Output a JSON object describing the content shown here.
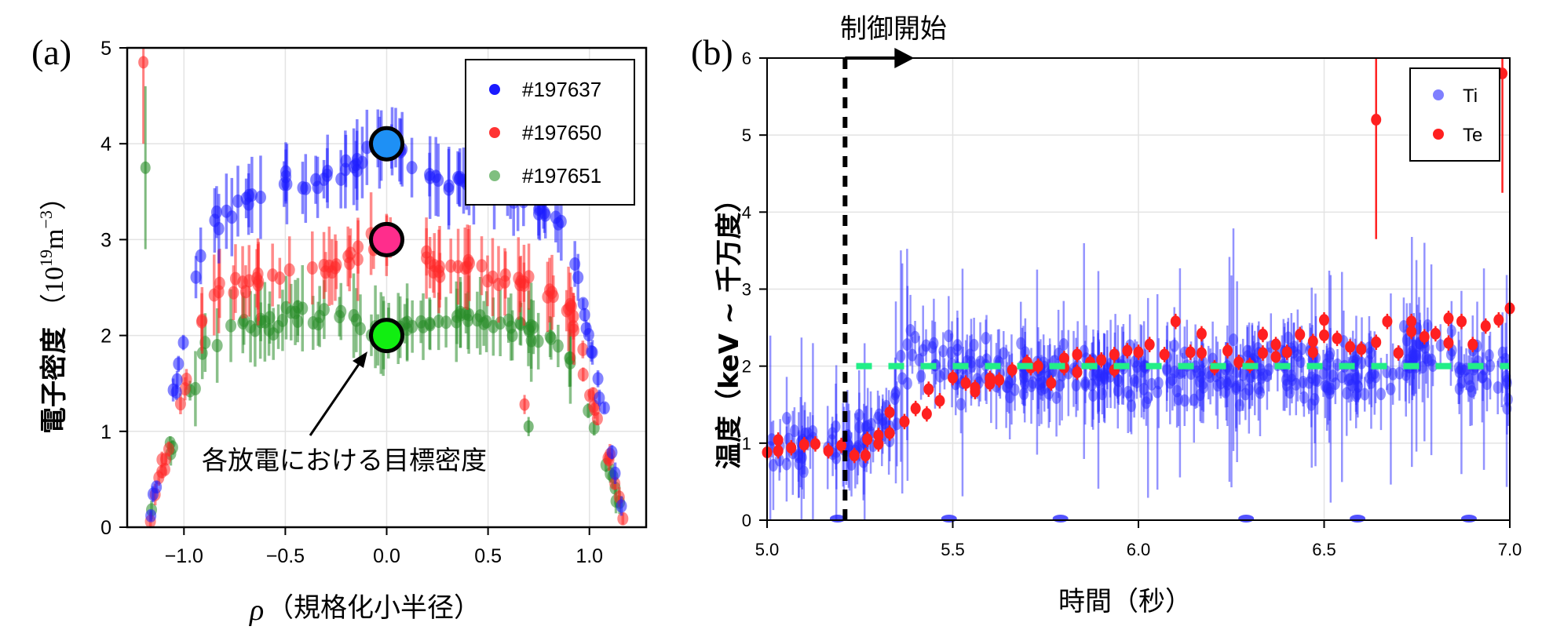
{
  "chart_data": [
    {
      "panel_label": "(a)",
      "type": "scatter",
      "xlabel_symbol": "ρ",
      "xlabel_text": "（規格化小半径）",
      "ylabel_text": "電子密度",
      "ylabel_unit_open": "（10",
      "ylabel_unit_exp": "19",
      "ylabel_unit_m": "m",
      "ylabel_unit_exp2": "−3",
      "ylabel_unit_close": "）",
      "xlim": [
        -1.28,
        1.28
      ],
      "ylim": [
        0,
        5
      ],
      "xticks": [
        -1.0,
        -0.5,
        0.0,
        0.5,
        1.0
      ],
      "xtick_labels": [
        "−1.0",
        "−0.5",
        "0.0",
        "0.5",
        "1.0"
      ],
      "yticks": [
        0,
        1,
        2,
        3,
        4,
        5
      ],
      "ytick_labels": [
        "0",
        "1",
        "2",
        "3",
        "4",
        "5"
      ],
      "grid": true,
      "legend_position": "top-right",
      "series": [
        {
          "name": "#197637",
          "color": "#1a1aff",
          "peak": 4.0,
          "shoulder": 3.6
        },
        {
          "name": "#197650",
          "color": "#ff3333",
          "peak": 3.0,
          "shoulder": 2.7
        },
        {
          "name": "#197651",
          "color": "#339933",
          "peak": 2.0,
          "shoulder": 2.2
        }
      ],
      "outliers": [
        {
          "series": "#197650",
          "x": -1.2,
          "y": 4.85,
          "err": 0.85
        },
        {
          "series": "#197651",
          "x": -1.19,
          "y": 3.75,
          "err": 0.85
        },
        {
          "series": "#197650",
          "x": 0.68,
          "y": 1.28,
          "err": 0.1
        },
        {
          "series": "#197651",
          "x": 0.7,
          "y": 1.05,
          "err": 0.1
        }
      ],
      "targets": [
        {
          "x": 0.0,
          "y": 4.0,
          "color": "#1e90f5"
        },
        {
          "x": 0.0,
          "y": 3.0,
          "color": "#ff2d8c"
        },
        {
          "x": 0.0,
          "y": 2.0,
          "color": "#11ee11"
        }
      ],
      "annotation": {
        "text": "各放電における目標密度",
        "arrow_to": {
          "x": -0.04,
          "y": 1.85
        }
      }
    },
    {
      "panel_label": "(b)",
      "type": "scatter",
      "xlabel": "時間（秒）",
      "ylabel": "温度（keV ~ 千万度）",
      "xlim": [
        5.0,
        7.0
      ],
      "ylim": [
        0,
        6
      ],
      "xticks": [
        5.0,
        5.5,
        6.0,
        6.5,
        7.0
      ],
      "xtick_labels": [
        "5.0",
        "5.5",
        "6.0",
        "6.5",
        "7.0"
      ],
      "yticks": [
        0,
        1,
        2,
        3,
        4,
        5,
        6
      ],
      "ytick_labels": [
        "0",
        "1",
        "2",
        "3",
        "4",
        "5",
        "6"
      ],
      "grid": true,
      "legend_position": "top-right",
      "series": [
        {
          "name": "Ti",
          "color": "#4444ff"
        },
        {
          "name": "Te",
          "color": "#ff2020"
        }
      ],
      "control_start": {
        "x": 5.21,
        "label": "制御開始"
      },
      "target_line": {
        "y": 2.0,
        "x_from": 5.24,
        "x_to": 7.0,
        "color": "#22ee88"
      },
      "te_points": [
        [
          5.0,
          0.88
        ],
        [
          5.03,
          1.04
        ],
        [
          5.03,
          0.9
        ],
        [
          5.065,
          0.94
        ],
        [
          5.1,
          0.98
        ],
        [
          5.13,
          0.99
        ],
        [
          5.165,
          0.9
        ],
        [
          5.2,
          0.97
        ],
        [
          5.235,
          0.84
        ],
        [
          5.265,
          0.84
        ],
        [
          5.27,
          1.05
        ],
        [
          5.3,
          1.1
        ],
        [
          5.3,
          0.99
        ],
        [
          5.33,
          1.13
        ],
        [
          5.33,
          1.4
        ],
        [
          5.37,
          1.28
        ],
        [
          5.4,
          1.45
        ],
        [
          5.43,
          1.38
        ],
        [
          5.435,
          1.7
        ],
        [
          5.465,
          1.55
        ],
        [
          5.5,
          1.85
        ],
        [
          5.535,
          1.78
        ],
        [
          5.56,
          1.72
        ],
        [
          5.56,
          1.67
        ],
        [
          5.6,
          1.84
        ],
        [
          5.6,
          1.77
        ],
        [
          5.625,
          1.82
        ],
        [
          5.66,
          1.95
        ],
        [
          5.7,
          2.05
        ],
        [
          5.71,
          1.98
        ],
        [
          5.73,
          2.0
        ],
        [
          5.765,
          1.78
        ],
        [
          5.8,
          1.98
        ],
        [
          5.8,
          2.1
        ],
        [
          5.835,
          2.15
        ],
        [
          5.835,
          1.92
        ],
        [
          5.87,
          2.05
        ],
        [
          5.9,
          2.08
        ],
        [
          5.935,
          2.15
        ],
        [
          5.935,
          1.95
        ],
        [
          5.97,
          2.2
        ],
        [
          6.0,
          2.18
        ],
        [
          6.03,
          2.28
        ],
        [
          6.07,
          2.15
        ],
        [
          6.1,
          2.58
        ],
        [
          6.14,
          2.18
        ],
        [
          6.17,
          2.42
        ],
        [
          6.17,
          2.17
        ],
        [
          6.205,
          1.98
        ],
        [
          6.24,
          2.2
        ],
        [
          6.27,
          2.05
        ],
        [
          6.3,
          2.01
        ],
        [
          6.335,
          2.41
        ],
        [
          6.335,
          2.17
        ],
        [
          6.37,
          2.28
        ],
        [
          6.37,
          2.12
        ],
        [
          6.4,
          2.18
        ],
        [
          6.435,
          2.41
        ],
        [
          6.47,
          2.18
        ],
        [
          6.47,
          2.32
        ],
        [
          6.5,
          2.4
        ],
        [
          6.5,
          2.6
        ],
        [
          6.535,
          2.36
        ],
        [
          6.57,
          2.25
        ],
        [
          6.6,
          2.22
        ],
        [
          6.64,
          2.31
        ],
        [
          6.64,
          5.2
        ],
        [
          6.67,
          2.58
        ],
        [
          6.7,
          2.17
        ],
        [
          6.735,
          2.45
        ],
        [
          6.735,
          2.58
        ],
        [
          6.77,
          2.38
        ],
        [
          6.8,
          2.42
        ],
        [
          6.835,
          2.3
        ],
        [
          6.835,
          2.62
        ],
        [
          6.87,
          2.58
        ],
        [
          6.9,
          2.28
        ],
        [
          6.935,
          2.52
        ],
        [
          6.97,
          2.6
        ],
        [
          6.98,
          5.8
        ],
        [
          7.0,
          2.75
        ]
      ]
    }
  ]
}
